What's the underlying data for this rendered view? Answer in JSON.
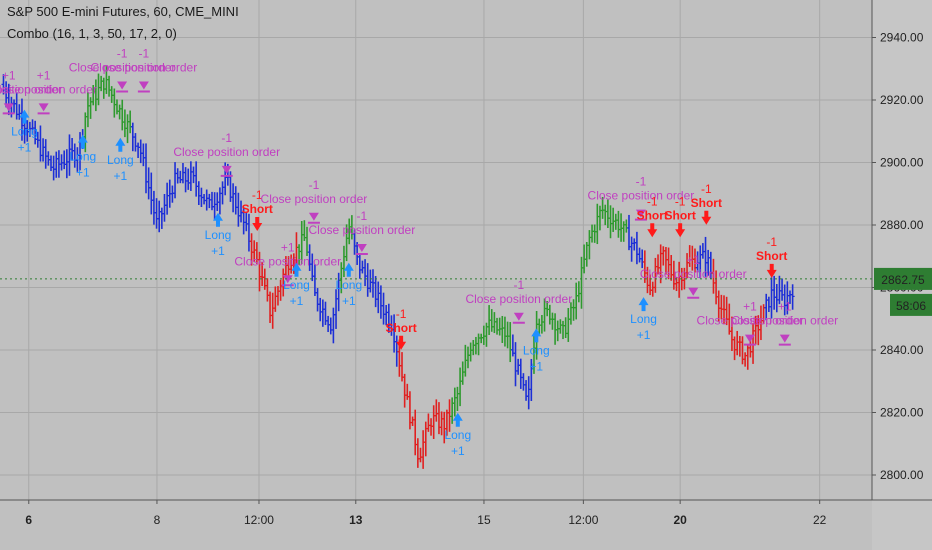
{
  "header": {
    "symbol_line": "S&P 500 E-mini Futures, 60, CME_MINI",
    "study_line": "Combo (16, 1, 3, 50, 17, 2, 0)"
  },
  "colors": {
    "background": "#c0c0c0",
    "grid": "#a8a8a8",
    "bar_blue": "#1d2fd6",
    "bar_green": "#2e9a2e",
    "bar_red": "#e02020",
    "close_order": "#c040c0",
    "long": "#1e90ff",
    "short": "#ff1a1a",
    "price_badge": "#2e7d32"
  },
  "price_badge": {
    "price": "2862.75",
    "countdown": "58:06"
  },
  "chart_data": {
    "type": "ohlc",
    "y_axis": {
      "min": 2792,
      "max": 2952,
      "ticks": [
        2800,
        2820,
        2840,
        2860,
        2880,
        2900,
        2920,
        2940
      ],
      "tick_labels": [
        "2800.00",
        "2820.00",
        "2840.00",
        "2860.00",
        "2880.00",
        "2900.00",
        "2920.00",
        "2940.00"
      ]
    },
    "x_axis": {
      "labels": [
        {
          "text": "6",
          "bold": true,
          "t": 0.033
        },
        {
          "text": "8",
          "bold": false,
          "t": 0.18
        },
        {
          "text": "12:00",
          "bold": false,
          "t": 0.297
        },
        {
          "text": "13",
          "bold": true,
          "t": 0.408
        },
        {
          "text": "15",
          "bold": false,
          "t": 0.555
        },
        {
          "text": "12:00",
          "bold": false,
          "t": 0.669
        },
        {
          "text": "20",
          "bold": true,
          "t": 0.78
        },
        {
          "text": "22",
          "bold": false,
          "t": 0.94
        }
      ]
    },
    "price_path": [
      {
        "t": 0.0,
        "p": 2925,
        "c": "blue"
      },
      {
        "t": 0.03,
        "p": 2912,
        "c": "blue"
      },
      {
        "t": 0.06,
        "p": 2898,
        "c": "blue"
      },
      {
        "t": 0.09,
        "p": 2904,
        "c": "blue"
      },
      {
        "t": 0.1,
        "p": 2918,
        "c": "green"
      },
      {
        "t": 0.12,
        "p": 2926,
        "c": "green"
      },
      {
        "t": 0.14,
        "p": 2915,
        "c": "green"
      },
      {
        "t": 0.16,
        "p": 2905,
        "c": "blue"
      },
      {
        "t": 0.18,
        "p": 2880,
        "c": "blue"
      },
      {
        "t": 0.2,
        "p": 2894,
        "c": "blue"
      },
      {
        "t": 0.22,
        "p": 2895,
        "c": "blue"
      },
      {
        "t": 0.24,
        "p": 2886,
        "c": "blue"
      },
      {
        "t": 0.26,
        "p": 2894,
        "c": "blue"
      },
      {
        "t": 0.28,
        "p": 2880,
        "c": "blue"
      },
      {
        "t": 0.295,
        "p": 2868,
        "c": "red"
      },
      {
        "t": 0.31,
        "p": 2852,
        "c": "red"
      },
      {
        "t": 0.33,
        "p": 2868,
        "c": "red"
      },
      {
        "t": 0.35,
        "p": 2876,
        "c": "green"
      },
      {
        "t": 0.36,
        "p": 2858,
        "c": "blue"
      },
      {
        "t": 0.38,
        "p": 2848,
        "c": "blue"
      },
      {
        "t": 0.4,
        "p": 2880,
        "c": "green"
      },
      {
        "t": 0.41,
        "p": 2868,
        "c": "blue"
      },
      {
        "t": 0.43,
        "p": 2858,
        "c": "blue"
      },
      {
        "t": 0.45,
        "p": 2848,
        "c": "blue"
      },
      {
        "t": 0.465,
        "p": 2826,
        "c": "red"
      },
      {
        "t": 0.48,
        "p": 2806,
        "c": "red"
      },
      {
        "t": 0.495,
        "p": 2818,
        "c": "red"
      },
      {
        "t": 0.51,
        "p": 2816,
        "c": "red"
      },
      {
        "t": 0.525,
        "p": 2826,
        "c": "green"
      },
      {
        "t": 0.54,
        "p": 2842,
        "c": "green"
      },
      {
        "t": 0.56,
        "p": 2848,
        "c": "green"
      },
      {
        "t": 0.58,
        "p": 2845,
        "c": "green"
      },
      {
        "t": 0.595,
        "p": 2832,
        "c": "blue"
      },
      {
        "t": 0.605,
        "p": 2822,
        "c": "blue"
      },
      {
        "t": 0.615,
        "p": 2850,
        "c": "green"
      },
      {
        "t": 0.63,
        "p": 2852,
        "c": "green"
      },
      {
        "t": 0.645,
        "p": 2845,
        "c": "green"
      },
      {
        "t": 0.66,
        "p": 2855,
        "c": "green"
      },
      {
        "t": 0.675,
        "p": 2875,
        "c": "green"
      },
      {
        "t": 0.69,
        "p": 2885,
        "c": "green"
      },
      {
        "t": 0.71,
        "p": 2880,
        "c": "green"
      },
      {
        "t": 0.73,
        "p": 2872,
        "c": "blue"
      },
      {
        "t": 0.745,
        "p": 2860,
        "c": "red"
      },
      {
        "t": 0.76,
        "p": 2870,
        "c": "red"
      },
      {
        "t": 0.775,
        "p": 2862,
        "c": "red"
      },
      {
        "t": 0.79,
        "p": 2868,
        "c": "red"
      },
      {
        "t": 0.81,
        "p": 2870,
        "c": "blue"
      },
      {
        "t": 0.825,
        "p": 2855,
        "c": "red"
      },
      {
        "t": 0.84,
        "p": 2843,
        "c": "red"
      },
      {
        "t": 0.855,
        "p": 2838,
        "c": "red"
      },
      {
        "t": 0.87,
        "p": 2848,
        "c": "red"
      },
      {
        "t": 0.885,
        "p": 2858,
        "c": "blue"
      },
      {
        "t": 0.9,
        "p": 2856,
        "c": "blue"
      },
      {
        "t": 0.915,
        "p": 2862,
        "c": "blue"
      }
    ],
    "signals": [
      {
        "type": "close",
        "t": 0.01,
        "p": 2917,
        "label": "Close position order",
        "qty": "+1"
      },
      {
        "type": "long",
        "t": 0.028,
        "p": 2915,
        "label": "Long",
        "qty": "+1"
      },
      {
        "type": "close",
        "t": 0.05,
        "p": 2917,
        "label": "Close position order",
        "qty": "+1"
      },
      {
        "type": "close",
        "t": 0.14,
        "p": 2924,
        "label": "Close position order",
        "qty": "-1"
      },
      {
        "type": "long",
        "t": 0.095,
        "p": 2907,
        "label": "Long",
        "qty": "+1"
      },
      {
        "type": "long",
        "t": 0.138,
        "p": 2906,
        "label": "Long",
        "qty": "+1"
      },
      {
        "type": "close",
        "t": 0.165,
        "p": 2924,
        "label": "Close position order",
        "qty": "-1"
      },
      {
        "type": "close",
        "t": 0.26,
        "p": 2897,
        "label": "Close position order",
        "qty": "-1"
      },
      {
        "type": "long",
        "t": 0.25,
        "p": 2882,
        "label": "Long",
        "qty": "+1"
      },
      {
        "type": "short",
        "t": 0.295,
        "p": 2880,
        "label": "Short",
        "qty": "-1"
      },
      {
        "type": "close",
        "t": 0.33,
        "p": 2862,
        "label": "Close position order",
        "qty": "+1"
      },
      {
        "type": "long",
        "t": 0.34,
        "p": 2866,
        "label": "Long",
        "qty": "+1"
      },
      {
        "type": "close",
        "t": 0.36,
        "p": 2882,
        "label": "Close position order",
        "qty": "-1"
      },
      {
        "type": "long",
        "t": 0.4,
        "p": 2866,
        "label": "Long",
        "qty": "+1"
      },
      {
        "type": "close",
        "t": 0.415,
        "p": 2872,
        "label": "Close position order",
        "qty": "-1"
      },
      {
        "type": "short",
        "t": 0.46,
        "p": 2842,
        "label": "Short",
        "qty": "-1"
      },
      {
        "type": "long",
        "t": 0.525,
        "p": 2818,
        "label": "Long",
        "qty": "+1"
      },
      {
        "type": "close",
        "t": 0.595,
        "p": 2850,
        "label": "Close position order",
        "qty": "-1"
      },
      {
        "type": "long",
        "t": 0.615,
        "p": 2845,
        "label": "Long",
        "qty": "+1"
      },
      {
        "type": "close",
        "t": 0.735,
        "p": 2883,
        "label": "Close position order",
        "qty": "-1"
      },
      {
        "type": "long",
        "t": 0.738,
        "p": 2855,
        "label": "Long",
        "qty": "+1"
      },
      {
        "type": "short",
        "t": 0.748,
        "p": 2878,
        "label": "Short",
        "qty": "-1"
      },
      {
        "type": "short",
        "t": 0.78,
        "p": 2878,
        "label": "Short",
        "qty": "-1"
      },
      {
        "type": "close",
        "t": 0.795,
        "p": 2858,
        "label": "Close position order",
        "qty": "+1"
      },
      {
        "type": "short",
        "t": 0.81,
        "p": 2882,
        "label": "Short",
        "qty": "-1"
      },
      {
        "type": "close",
        "t": 0.86,
        "p": 2843,
        "label": "Close position order",
        "qty": "+1"
      },
      {
        "type": "short",
        "t": 0.885,
        "p": 2865,
        "label": "Short",
        "qty": "-1"
      },
      {
        "type": "close",
        "t": 0.9,
        "p": 2843,
        "label": "Close position order",
        "qty": "+1"
      }
    ]
  }
}
